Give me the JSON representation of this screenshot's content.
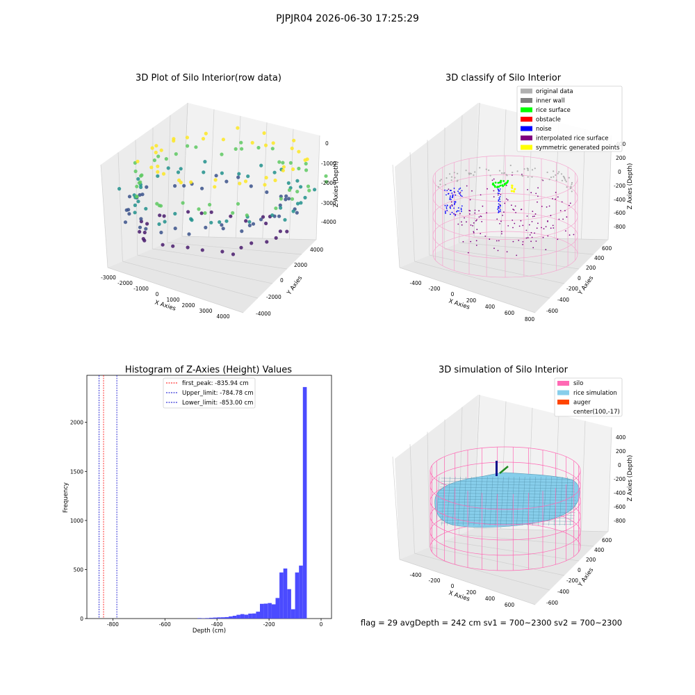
{
  "figure_title": "PJPJR04 2026-06-30 17:25:29",
  "footer_text": "flag = 29  avgDepth = 242 cm  sv1 = 700~2300  sv2 = 700~2300",
  "chart_data": [
    {
      "type": "scatter",
      "title": "3D Plot of Silo Interior(row data)",
      "xlabel": "X Axies",
      "ylabel": "Y Axies",
      "zlabel": "Z Axies (Depth)",
      "x_ticks": [
        "-3000",
        "-2000",
        "-1000",
        "0",
        "1000",
        "2000",
        "3000",
        "4000"
      ],
      "y_ticks": [
        "-4000",
        "-2000",
        "0",
        "2000",
        "4000"
      ],
      "z_ticks": [
        "0",
        "-1000",
        "-2000",
        "-3000",
        "-4000"
      ],
      "colormap": "viridis",
      "rings": [
        {
          "cx": 300,
          "cy": 470,
          "rx": 170,
          "ry": 30,
          "z": -4300,
          "color": "#481a6c",
          "n": 28
        },
        {
          "cx": 300,
          "cy": 470,
          "rx": 200,
          "ry": 40,
          "z": -3100,
          "color": "#3b528b",
          "n": 40
        },
        {
          "cx": 310,
          "cy": 470,
          "rx": 210,
          "ry": 45,
          "z": -2500,
          "color": "#21918c",
          "n": 44
        },
        {
          "cx": 320,
          "cy": 470,
          "rx": 220,
          "ry": 50,
          "z": -1700,
          "color": "#5ec962",
          "n": 46
        },
        {
          "cx": 320,
          "cy": 470,
          "rx": 180,
          "ry": 40,
          "z": -700,
          "color": "#fde725",
          "n": 38
        }
      ]
    },
    {
      "type": "scatter",
      "title": "3D classify of Silo Interior",
      "xlabel": "X Axies",
      "ylabel": "Y Axies",
      "zlabel": "Z Axies (Depth)",
      "x_ticks": [
        "-400",
        "-200",
        "0",
        "200",
        "400",
        "600",
        "800"
      ],
      "y_ticks": [
        "-600",
        "-400",
        "-200",
        "0",
        "200",
        "400",
        "600"
      ],
      "z_ticks": [
        "400",
        "200",
        "0",
        "-200",
        "-400",
        "-600",
        "-800"
      ],
      "legend": [
        {
          "label": "original data",
          "color": "#b0b0b0"
        },
        {
          "label": "inner wall",
          "color": "#808080"
        },
        {
          "label": "rice surface",
          "color": "#00ff00"
        },
        {
          "label": "obstacle",
          "color": "#ff0000"
        },
        {
          "label": "noise",
          "color": "#0000ff"
        },
        {
          "label": "interpolated rice surface",
          "color": "#800080"
        },
        {
          "label": "symmetric generated points",
          "color": "#ffff00"
        }
      ]
    },
    {
      "type": "bar",
      "title": "Histogram of Z-Axies (Height) Values",
      "xlabel": "Depth (cm)",
      "ylabel": "Frequency",
      "xlim": [
        -900,
        40
      ],
      "ylim": [
        0,
        2480
      ],
      "x_ticks": [
        -800,
        -600,
        -400,
        -200,
        0
      ],
      "y_ticks": [
        0,
        500,
        1000,
        1500,
        2000
      ],
      "bin_width": 15,
      "bins": [
        {
          "x": -475,
          "v": 5
        },
        {
          "x": -460,
          "v": 3
        },
        {
          "x": -445,
          "v": 5
        },
        {
          "x": -430,
          "v": 8
        },
        {
          "x": -415,
          "v": 10
        },
        {
          "x": -400,
          "v": 12
        },
        {
          "x": -385,
          "v": 13
        },
        {
          "x": -370,
          "v": 15
        },
        {
          "x": -355,
          "v": 22
        },
        {
          "x": -340,
          "v": 28
        },
        {
          "x": -325,
          "v": 38
        },
        {
          "x": -310,
          "v": 45
        },
        {
          "x": -295,
          "v": 40
        },
        {
          "x": -280,
          "v": 50
        },
        {
          "x": -265,
          "v": 52
        },
        {
          "x": -250,
          "v": 70
        },
        {
          "x": -235,
          "v": 150
        },
        {
          "x": -220,
          "v": 152
        },
        {
          "x": -205,
          "v": 158
        },
        {
          "x": -190,
          "v": 145
        },
        {
          "x": -175,
          "v": 210
        },
        {
          "x": -160,
          "v": 470
        },
        {
          "x": -145,
          "v": 510
        },
        {
          "x": -130,
          "v": 300
        },
        {
          "x": -115,
          "v": 95
        },
        {
          "x": -100,
          "v": 470
        },
        {
          "x": -85,
          "v": 540
        },
        {
          "x": -70,
          "v": 2360
        }
      ],
      "lines": [
        {
          "label": "first_peak: -835.94 cm",
          "value": -835.94,
          "color": "#ff0000"
        },
        {
          "label": "Upper_limit: -784.78 cm",
          "value": -784.78,
          "color": "#0000cc"
        },
        {
          "label": "Lower_limit: -853.00 cm",
          "value": -853.0,
          "color": "#0000cc"
        }
      ],
      "bar_color": "#4b4bff"
    },
    {
      "type": "surface",
      "title": "3D simulation of Silo Interior",
      "xlabel": "X Axies",
      "ylabel": "Y Axies",
      "zlabel": "Z Axies (Depth)",
      "x_ticks": [
        "-400",
        "-200",
        "0",
        "200",
        "400",
        "600"
      ],
      "y_ticks": [
        "-600",
        "-400",
        "-200",
        "0",
        "200",
        "400",
        "600"
      ],
      "z_ticks": [
        "400",
        "200",
        "0",
        "-200",
        "-400",
        "-600",
        "-800"
      ],
      "legend": [
        {
          "label": "silo",
          "color": "#ff69b4"
        },
        {
          "label": "rice simulation",
          "color": "#87ceeb"
        },
        {
          "label": "auger",
          "color": "#ff4500"
        },
        {
          "label": "center(100,-17)",
          "color": ""
        }
      ]
    }
  ]
}
